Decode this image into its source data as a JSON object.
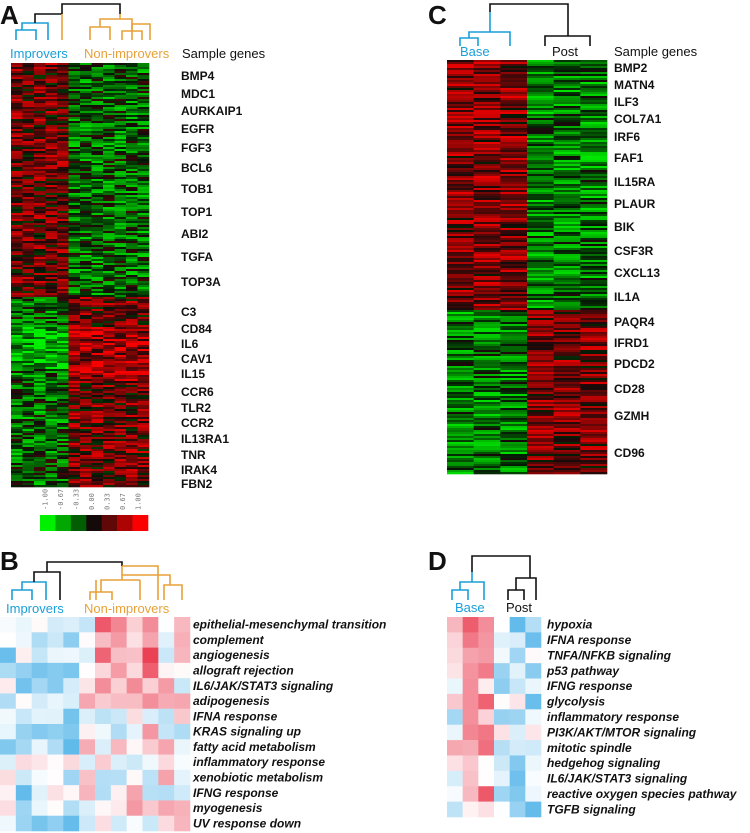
{
  "colors": {
    "improvers": "#1a9fd9",
    "non_improvers": "#e8a13a",
    "base": "#1a9fd9",
    "post": "#111111",
    "dendro": "#111111",
    "low": "#22ee22",
    "mid": "#000000",
    "high": "#ee2222"
  },
  "panel_a": {
    "label": "A",
    "groups": [
      "Improvers",
      "Non-improvers"
    ],
    "header": "Sample genes",
    "genes": [
      "BMP4",
      "MDC1",
      "AURKAIP1",
      "EGFR",
      "FGF3",
      "BCL6",
      "TOB1",
      "TOP1",
      "ABI2",
      "TGFA",
      "TOP3A",
      "C3",
      "CD84",
      "IL6",
      "CAV1",
      "IL15",
      "CCR6",
      "TLR2",
      "CCR2",
      "IL13RA1",
      "TNR",
      "IRAK4",
      "FBN2"
    ],
    "color_key": [
      "-1.00",
      "-0.67",
      "-0.33",
      "0.00",
      "0.33",
      "0.67",
      "1.00"
    ]
  },
  "panel_b": {
    "label": "B",
    "groups": [
      "Improvers",
      "Non-improvers"
    ],
    "pathways": [
      "epithelial-mesenchymal transition",
      "complement",
      "angiogenesis",
      "allograft rejection",
      "IL6/JAK/STAT3 signaling",
      "adipogenesis",
      "IFNA response",
      "KRAS signaling up",
      "fatty acid metabolism",
      "inflammatory response",
      "xenobiotic metabolism",
      "IFNG response",
      "myogenesis",
      "UV response down"
    ]
  },
  "panel_c": {
    "label": "C",
    "groups": [
      "Base",
      "Post"
    ],
    "header": "Sample genes",
    "genes": [
      "BMP2",
      "MATN4",
      "ILF3",
      "COL7A1",
      "IRF6",
      "FAF1",
      "IL15RA",
      "PLAUR",
      "BIK",
      "CSF3R",
      "CXCL13",
      "IL1A",
      "PAQR4",
      "IFRD1",
      "PDCD2",
      "CD28",
      "GZMH",
      "CD96"
    ]
  },
  "panel_d": {
    "label": "D",
    "groups": [
      "Base",
      "Post"
    ],
    "pathways": [
      "hypoxia",
      "IFNA response",
      "TNFA/NFKB signaling",
      "p53 pathway",
      "IFNG response",
      "glycolysis",
      "inflammatory response",
      "PI3K/AKT/MTOR signaling",
      "mitotic spindle",
      "hedgehog signaling",
      "IL6/JAK/STAT3 signaling",
      "reactive oxygen species pathway",
      "TGFB signaling"
    ]
  }
}
